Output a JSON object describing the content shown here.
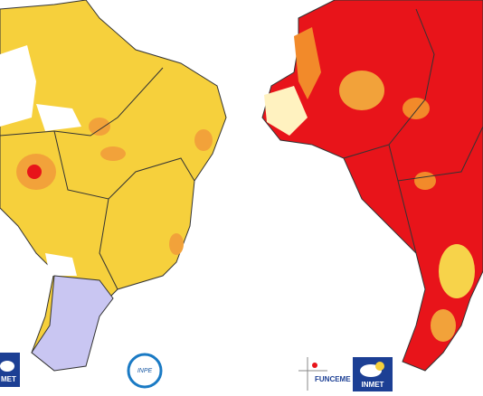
{
  "logos": [
    {
      "label": "MET"
    },
    {
      "label": "INPE"
    },
    {
      "label": "FUNCEME"
    },
    {
      "label": "INMET"
    }
  ]
}
